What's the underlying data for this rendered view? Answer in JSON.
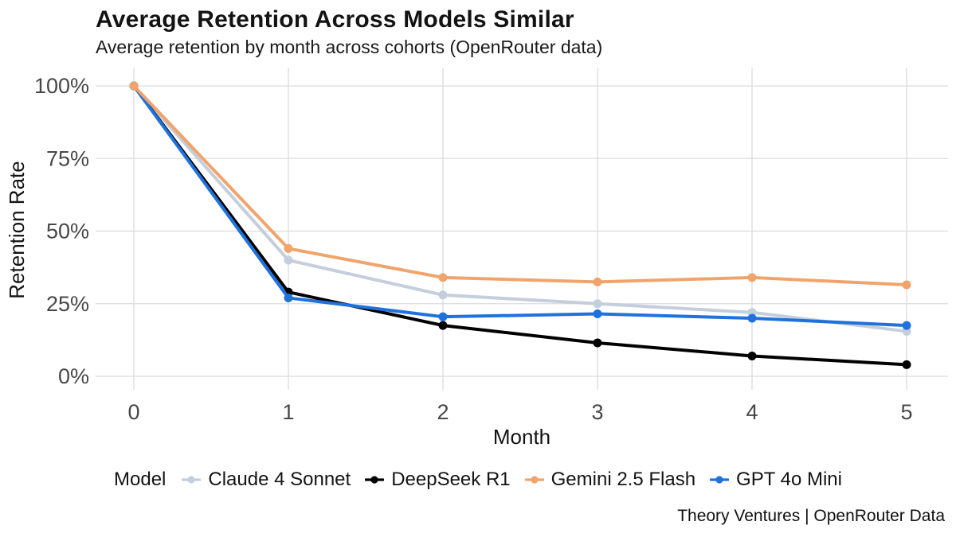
{
  "header": {
    "title": "Average Retention Across Models Similar",
    "subtitle": "Average retention by month across cohorts (OpenRouter data)"
  },
  "caption": "Theory Ventures | OpenRouter Data",
  "legend": {
    "label": "Model",
    "position": "bottom"
  },
  "colors": {
    "grid": "#dcdcdc",
    "tick_label": "#474747",
    "axis_title": "#131313"
  },
  "chart_data": {
    "type": "line",
    "title": "Average Retention Across Models Similar",
    "subtitle": "Average retention by month across cohorts (OpenRouter data)",
    "xlabel": "Month",
    "ylabel": "Retention Rate",
    "x": [
      0,
      1,
      2,
      3,
      4,
      5
    ],
    "xtick_labels": [
      "0",
      "1",
      "2",
      "3",
      "4",
      "5"
    ],
    "ylim": [
      0,
      100
    ],
    "yticks": [
      0,
      25,
      50,
      75,
      100
    ],
    "ytick_labels": [
      "0%",
      "25%",
      "50%",
      "75%",
      "100%"
    ],
    "grid": true,
    "legend_position": "bottom",
    "series": [
      {
        "name": "Claude 4 Sonnet",
        "color": "#c4cedc",
        "values": [
          100,
          40,
          28,
          25,
          22,
          15.5
        ]
      },
      {
        "name": "DeepSeek R1",
        "color": "#000000",
        "values": [
          100,
          29,
          17.5,
          11.5,
          7,
          4
        ]
      },
      {
        "name": "Gemini 2.5 Flash",
        "color": "#f0a46c",
        "values": [
          100,
          44,
          34,
          32.5,
          34,
          31.5
        ]
      },
      {
        "name": "GPT 4o Mini",
        "color": "#1f72dd",
        "values": [
          100,
          27,
          20.5,
          21.5,
          20,
          17.5
        ]
      }
    ]
  }
}
